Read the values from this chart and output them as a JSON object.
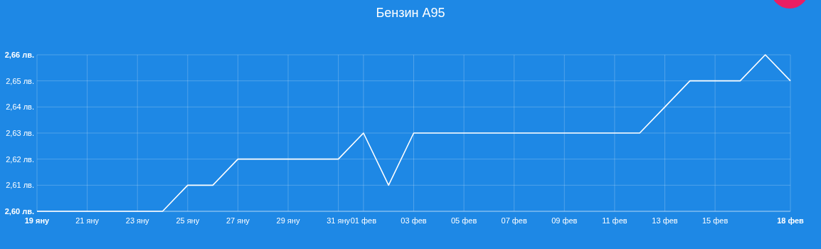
{
  "chart_data": {
    "type": "line",
    "title": "Бензин А95",
    "x": [
      "--01-19",
      "--01-20",
      "--01-21",
      "--01-22",
      "--01-23",
      "--01-24",
      "--01-25",
      "--01-26",
      "--01-27",
      "--01-28",
      "--01-29",
      "--01-30",
      "--01-31",
      "--02-01",
      "--02-02",
      "--02-03",
      "--02-04",
      "--02-05",
      "--02-06",
      "--02-07",
      "--02-08",
      "--02-09",
      "--02-10",
      "--02-11",
      "--02-12",
      "--02-13",
      "--02-14",
      "--02-15",
      "--02-16",
      "--02-17",
      "--02-18"
    ],
    "series": [
      {
        "color": "#ffffff",
        "values": [
          2.6,
          2.6,
          2.6,
          2.6,
          2.6,
          2.6,
          2.61,
          2.61,
          2.62,
          2.62,
          2.62,
          2.62,
          2.62,
          2.63,
          2.61,
          2.63,
          2.63,
          2.63,
          2.63,
          2.63,
          2.63,
          2.63,
          2.63,
          2.63,
          2.63,
          2.64,
          2.65,
          2.65,
          2.65,
          2.66,
          2.65
        ]
      }
    ],
    "xlim": [
      "--01-19",
      "--02-18"
    ],
    "xticks": [
      {
        "value": "--01-19",
        "label": "19 яну"
      },
      {
        "value": "--01-21",
        "label": "21 яну"
      },
      {
        "value": "--01-23",
        "label": "23 яну"
      },
      {
        "value": "--01-25",
        "label": "25 яну"
      },
      {
        "value": "--01-27",
        "label": "27 яну"
      },
      {
        "value": "--01-29",
        "label": "29 яну"
      },
      {
        "value": "--01-31",
        "label": "31 яну"
      },
      {
        "value": "--02-01",
        "label": "01 фев"
      },
      {
        "value": "--02-03",
        "label": "03 фев"
      },
      {
        "value": "--02-05",
        "label": "05 фев"
      },
      {
        "value": "--02-07",
        "label": "07 фев"
      },
      {
        "value": "--02-09",
        "label": "09 фев"
      },
      {
        "value": "--02-11",
        "label": "11 фев"
      },
      {
        "value": "--02-13",
        "label": "13 фев"
      },
      {
        "value": "--02-15",
        "label": "15 фев"
      },
      {
        "value": "--02-18",
        "label": "18 фев"
      }
    ],
    "ylim": [
      2.6,
      2.66
    ],
    "yticks": [
      {
        "value": 2.6,
        "label": "2,60 лв."
      },
      {
        "value": 2.61,
        "label": "2,61 лв."
      },
      {
        "value": 2.62,
        "label": "2,62 лв."
      },
      {
        "value": 2.63,
        "label": "2,63 лв."
      },
      {
        "value": 2.64,
        "label": "2,64 лв."
      },
      {
        "value": 2.65,
        "label": "2,65 лв."
      },
      {
        "value": 2.66,
        "label": "2,66 лв."
      }
    ],
    "grid": true,
    "marker": "none",
    "line_style": "solid"
  }
}
